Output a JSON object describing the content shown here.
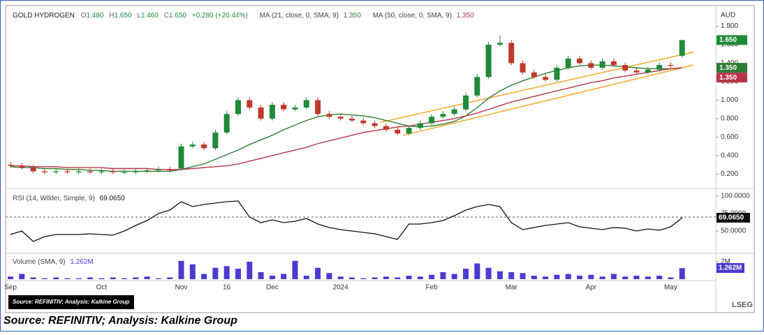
{
  "chart_data": [
    {
      "type": "candlestick",
      "title": "GOLD HYDROGEN",
      "currency": "AUD",
      "ohlc_labels": [
        "O",
        "H",
        "L",
        "C"
      ],
      "ohlc_texts": [
        "1.480",
        "1.650",
        "1.460",
        "1.650"
      ],
      "change": "+0.280 (+20.44%)",
      "categories": [
        "Sep",
        null,
        null,
        null,
        null,
        null,
        null,
        null,
        "Oct",
        null,
        null,
        null,
        null,
        null,
        null,
        "Nov",
        null,
        null,
        null,
        "16",
        null,
        null,
        null,
        "Dec",
        null,
        null,
        null,
        null,
        null,
        "2024",
        null,
        null,
        null,
        null,
        null,
        null,
        null,
        "Feb",
        null,
        null,
        null,
        null,
        null,
        null,
        "Mar",
        null,
        null,
        null,
        null,
        null,
        null,
        "Apr",
        null,
        null,
        null,
        null,
        null,
        null,
        "May",
        null
      ],
      "open": [
        0.3,
        0.29,
        0.27,
        0.23,
        0.22,
        0.23,
        0.22,
        0.23,
        0.22,
        0.23,
        0.22,
        0.22,
        0.23,
        0.24,
        0.25,
        0.26,
        0.5,
        0.52,
        0.48,
        0.65,
        0.85,
        1.0,
        0.92,
        0.8,
        0.95,
        0.9,
        0.92,
        1.0,
        0.85,
        0.82,
        0.8,
        0.78,
        0.75,
        0.72,
        0.68,
        0.64,
        0.7,
        0.75,
        0.82,
        0.85,
        0.9,
        1.05,
        1.25,
        1.6,
        1.62,
        1.4,
        1.3,
        1.25,
        1.22,
        1.35,
        1.45,
        1.4,
        1.35,
        1.42,
        1.38,
        1.32,
        1.3,
        1.33,
        1.38,
        1.48
      ],
      "high": [
        0.33,
        0.32,
        0.3,
        0.26,
        0.26,
        0.26,
        0.26,
        0.26,
        0.26,
        0.26,
        0.25,
        0.26,
        0.27,
        0.28,
        0.28,
        0.53,
        0.55,
        0.55,
        0.68,
        0.88,
        1.03,
        1.03,
        0.95,
        0.98,
        0.98,
        0.95,
        1.03,
        1.03,
        0.88,
        0.85,
        0.83,
        0.81,
        0.78,
        0.75,
        0.71,
        0.73,
        0.78,
        0.85,
        0.88,
        0.93,
        1.08,
        1.28,
        1.63,
        1.7,
        1.65,
        1.43,
        1.33,
        1.28,
        1.38,
        1.48,
        1.48,
        1.43,
        1.45,
        1.45,
        1.41,
        1.35,
        1.36,
        1.41,
        1.41,
        1.65
      ],
      "low": [
        0.27,
        0.25,
        0.21,
        0.2,
        0.2,
        0.2,
        0.2,
        0.2,
        0.2,
        0.2,
        0.2,
        0.2,
        0.21,
        0.22,
        0.22,
        0.24,
        0.48,
        0.46,
        0.46,
        0.63,
        0.83,
        0.9,
        0.78,
        0.78,
        0.88,
        0.88,
        0.9,
        0.83,
        0.8,
        0.78,
        0.76,
        0.73,
        0.7,
        0.66,
        0.62,
        0.62,
        0.68,
        0.73,
        0.8,
        0.83,
        0.88,
        1.03,
        1.23,
        1.58,
        1.38,
        1.28,
        1.23,
        1.2,
        1.2,
        1.33,
        1.38,
        1.33,
        1.33,
        1.36,
        1.3,
        1.28,
        1.28,
        1.31,
        1.35,
        1.46
      ],
      "close": [
        0.29,
        0.27,
        0.23,
        0.22,
        0.23,
        0.22,
        0.23,
        0.22,
        0.23,
        0.22,
        0.22,
        0.23,
        0.24,
        0.25,
        0.24,
        0.5,
        0.52,
        0.48,
        0.65,
        0.85,
        1.0,
        0.92,
        0.8,
        0.95,
        0.9,
        0.92,
        1.0,
        0.85,
        0.82,
        0.8,
        0.78,
        0.75,
        0.72,
        0.68,
        0.64,
        0.7,
        0.75,
        0.82,
        0.85,
        0.9,
        1.05,
        1.25,
        1.6,
        1.62,
        1.4,
        1.3,
        1.25,
        1.22,
        1.35,
        1.45,
        1.4,
        1.35,
        1.42,
        1.38,
        1.32,
        1.3,
        1.33,
        1.38,
        1.37,
        1.65
      ],
      "last_label": "1.650",
      "up_color": "#1f8a3a",
      "down_color": "#c0392b",
      "series": [
        {
          "name": "MA (21, close, 0, SMA, 9)",
          "color": "#2e7d32",
          "last_label": "1.350",
          "values": [
            0.28,
            0.27,
            0.27,
            0.26,
            0.26,
            0.25,
            0.25,
            0.24,
            0.24,
            0.23,
            0.23,
            0.23,
            0.23,
            0.23,
            0.23,
            0.25,
            0.28,
            0.31,
            0.36,
            0.41,
            0.46,
            0.52,
            0.57,
            0.62,
            0.68,
            0.73,
            0.78,
            0.82,
            0.84,
            0.85,
            0.84,
            0.83,
            0.81,
            0.78,
            0.75,
            0.72,
            0.71,
            0.72,
            0.74,
            0.77,
            0.83,
            0.92,
            1.02,
            1.1,
            1.16,
            1.21,
            1.25,
            1.29,
            1.32,
            1.35,
            1.37,
            1.38,
            1.38,
            1.37,
            1.36,
            1.35,
            1.34,
            1.34,
            1.34,
            1.35
          ]
        },
        {
          "name": "MA (50, close, 0, SMA, 9)",
          "color": "#b8344a",
          "last_label": "1.350",
          "values": [
            0.29,
            0.29,
            0.28,
            0.28,
            0.28,
            0.27,
            0.27,
            0.27,
            0.27,
            0.26,
            0.26,
            0.26,
            0.26,
            0.25,
            0.25,
            0.25,
            0.26,
            0.27,
            0.28,
            0.29,
            0.31,
            0.34,
            0.37,
            0.4,
            0.43,
            0.46,
            0.49,
            0.53,
            0.56,
            0.59,
            0.62,
            0.65,
            0.67,
            0.69,
            0.71,
            0.72,
            0.74,
            0.76,
            0.78,
            0.8,
            0.83,
            0.86,
            0.9,
            0.94,
            0.98,
            1.01,
            1.04,
            1.07,
            1.1,
            1.13,
            1.16,
            1.19,
            1.21,
            1.24,
            1.26,
            1.28,
            1.3,
            1.32,
            1.34,
            1.35
          ]
        }
      ],
      "trendlines": {
        "color": "#f5a623",
        "lines": [
          {
            "x": [
              32.5,
              60
            ],
            "y": [
              0.76,
              1.52
            ]
          },
          {
            "x": [
              34.5,
              60
            ],
            "y": [
              0.62,
              1.38
            ]
          }
        ]
      },
      "ylim": [
        0.06,
        1.97
      ],
      "yticks": [
        {
          "value": 0.2,
          "label": "0.200"
        },
        {
          "value": 0.4,
          "label": "0.400"
        },
        {
          "value": 0.6,
          "label": "0.600"
        },
        {
          "value": 0.8,
          "label": "0.800"
        },
        {
          "value": 1.0,
          "label": "1.000"
        },
        {
          "value": 1.2,
          "label": "1.200"
        },
        {
          "value": 1.4,
          "label": "1.400"
        },
        {
          "value": 1.6,
          "label": "1.600"
        },
        {
          "value": 1.8,
          "label": "1.800"
        }
      ]
    },
    {
      "type": "line",
      "name": "RSI (14, Wilder, Simple, 9)",
      "color": "#111111",
      "last_label": "69.0650",
      "level": 70,
      "values": [
        45,
        50,
        35,
        42,
        45,
        45,
        45,
        46,
        45,
        44,
        50,
        58,
        65,
        75,
        80,
        92,
        85,
        88,
        90,
        92,
        93,
        70,
        62,
        66,
        62,
        64,
        68,
        60,
        55,
        52,
        50,
        48,
        46,
        42,
        38,
        60,
        60,
        62,
        65,
        72,
        80,
        85,
        88,
        85,
        62,
        52,
        55,
        58,
        60,
        62,
        56,
        54,
        52,
        55,
        54,
        50,
        53,
        51,
        56,
        69.065
      ],
      "ylim": [
        19,
        109
      ],
      "yticks": [
        {
          "value": 50,
          "label": "50.0000"
        },
        {
          "value": 75,
          "label": "75.0000"
        },
        {
          "value": 100,
          "label": "100.0000"
        }
      ]
    },
    {
      "type": "bar",
      "name": "Volume (SMA, 9)",
      "color": "#4b3bd1",
      "last_label": "1.262M",
      "values": [
        0.3,
        0.6,
        0.2,
        0.1,
        0.2,
        0.1,
        0.1,
        0.2,
        0.1,
        0.2,
        0.1,
        0.2,
        0.3,
        0.1,
        0.2,
        2.1,
        1.7,
        0.6,
        1.3,
        1.5,
        1.2,
        2.0,
        0.8,
        0.4,
        0.6,
        2.1,
        0.4,
        1.3,
        0.7,
        0.3,
        0.2,
        0.1,
        0.2,
        0.3,
        0.2,
        0.4,
        0.3,
        0.5,
        0.8,
        0.6,
        1.2,
        1.8,
        1.3,
        0.9,
        0.8,
        0.7,
        0.4,
        0.3,
        0.5,
        0.6,
        0.4,
        0.5,
        0.3,
        0.6,
        0.3,
        0.4,
        0.3,
        0.4,
        0.2,
        1.262
      ],
      "ylim": [
        0,
        2.8
      ],
      "yticks": [
        {
          "value": 2,
          "label": "2M"
        }
      ]
    }
  ],
  "footer": {
    "source_box": "Source: REFINITIV; Analysis: Kalkine Group",
    "caption": "Source: REFINITIV; Analysis: Kalkine Group",
    "logo": "LSEG"
  }
}
